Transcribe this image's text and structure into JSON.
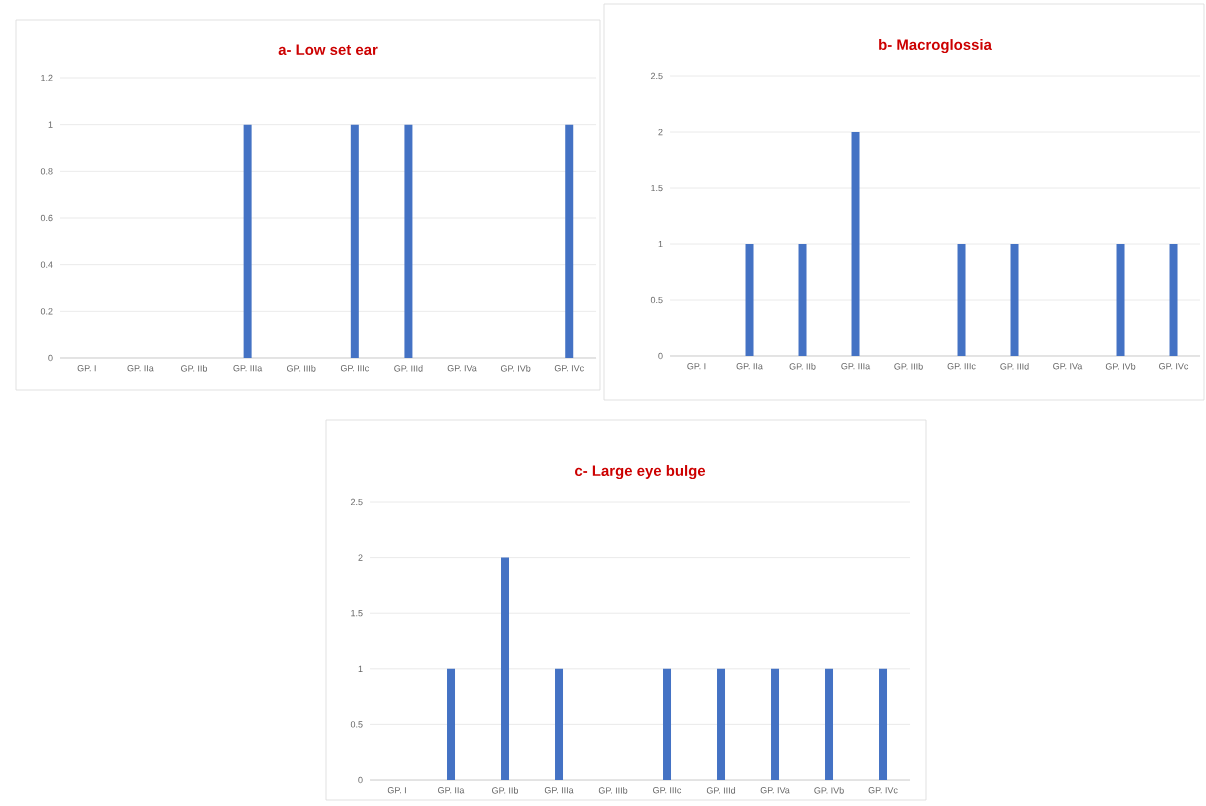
{
  "chart_data": [
    {
      "type": "bar",
      "title": "a- Low set ear",
      "categories": [
        "GP. I",
        "GP. IIa",
        "GP. IIb",
        "GP. IIIa",
        "GP. IIIb",
        "GP. IIIc",
        "GP. IIId",
        "GP. IVa",
        "GP. IVb",
        "GP. IVc"
      ],
      "values": [
        0,
        0,
        0,
        1,
        0,
        1,
        1,
        0,
        0,
        1
      ],
      "color": "#4472c4",
      "ylim": [
        0,
        1.2
      ],
      "yticks": [
        0,
        0.2,
        0.4,
        0.6,
        0.8,
        1,
        1.2
      ],
      "grid": "y"
    },
    {
      "type": "bar",
      "title": "b- Macroglossia",
      "categories": [
        "GP. I",
        "GP. IIa",
        "GP. IIb",
        "GP. IIIa",
        "GP. IIIb",
        "GP. IIIc",
        "GP. IIId",
        "GP. IVa",
        "GP. IVb",
        "GP. IVc"
      ],
      "values": [
        0,
        1,
        1,
        2,
        0,
        1,
        1,
        0,
        1,
        1
      ],
      "color": "#4472c4",
      "ylim": [
        0,
        2.5
      ],
      "yticks": [
        0,
        0.5,
        1,
        1.5,
        2,
        2.5
      ],
      "grid": "y"
    },
    {
      "type": "bar",
      "title": "c- Large eye bulge",
      "categories": [
        "GP. I",
        "GP. IIa",
        "GP. IIb",
        "GP. IIIa",
        "GP. IIIb",
        "GP. IIIc",
        "GP. IIId",
        "GP. IVa",
        "GP. IVb",
        "GP. IVc"
      ],
      "values": [
        0,
        1,
        2,
        1,
        0,
        1,
        1,
        1,
        1,
        1
      ],
      "color": "#4472c4",
      "ylim": [
        0,
        2.5
      ],
      "yticks": [
        0,
        0.5,
        1,
        1.5,
        2,
        2.5
      ],
      "grid": "y"
    }
  ]
}
